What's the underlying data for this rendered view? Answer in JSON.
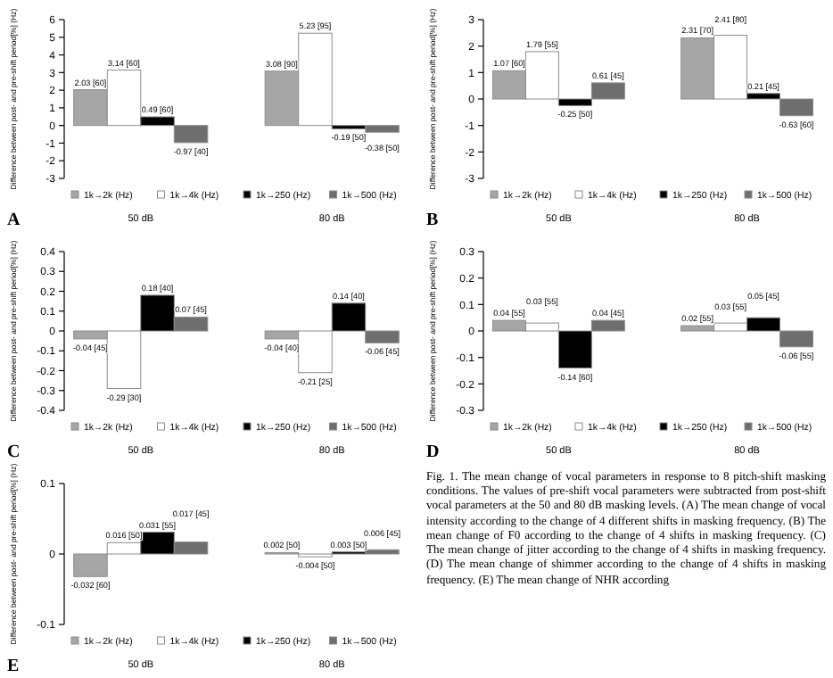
{
  "chart_data": [
    {
      "type": "bar",
      "ylabel": "Difference between post- and pre-shift period[%] (Hz)",
      "categories": [
        "50 dB",
        "80 dB"
      ],
      "ylim": [
        -3,
        6
      ],
      "yticks": [
        -3,
        -2,
        -1,
        0,
        1,
        2,
        3,
        4,
        5,
        6
      ],
      "legend": "bottom",
      "annotations": [
        "A"
      ],
      "series": [
        {
          "name": "1k→2k (Hz)",
          "color": "#a6a6a6",
          "values": [
            2.03,
            3.08
          ],
          "value_labels": [
            "2.03 [60]",
            "3.08 [90]"
          ]
        },
        {
          "name": "1k→4k (Hz)",
          "color": "#ffffff",
          "values": [
            3.14,
            5.23
          ],
          "value_labels": [
            "3.14 [60]",
            "5.23 [95]"
          ]
        },
        {
          "name": "1k→250 (Hz)",
          "color": "#000000",
          "values": [
            0.49,
            -0.19
          ],
          "value_labels": [
            "0.49 [60]",
            "-0.19 [50]"
          ]
        },
        {
          "name": "1k→500 (Hz)",
          "color": "#6e6e6e",
          "values": [
            -0.97,
            -0.38
          ],
          "value_labels": [
            "-0.97 [40]",
            "-0.38 [50]"
          ]
        }
      ]
    },
    {
      "type": "bar",
      "ylabel": "Difference between post- and pre-shift period[%] (Hz)",
      "categories": [
        "50 dB",
        "80 dB"
      ],
      "ylim": [
        -3,
        3
      ],
      "yticks": [
        -3,
        -2,
        -1,
        0,
        1,
        2,
        3
      ],
      "legend": "bottom",
      "annotations": [
        "B"
      ],
      "series": [
        {
          "name": "1k→2k (Hz)",
          "color": "#a6a6a6",
          "values": [
            1.07,
            2.31
          ],
          "value_labels": [
            "1.07 [60]",
            "2.31 [70]"
          ]
        },
        {
          "name": "1k→4k (Hz)",
          "color": "#ffffff",
          "values": [
            1.79,
            2.41
          ],
          "value_labels": [
            "1.79 [55]",
            "2.41 [80]"
          ]
        },
        {
          "name": "1k→250 (Hz)",
          "color": "#000000",
          "values": [
            -0.25,
            0.21
          ],
          "value_labels": [
            "-0.25 [50]",
            "0.21 [45]"
          ]
        },
        {
          "name": "1k→500 (Hz)",
          "color": "#6e6e6e",
          "values": [
            0.61,
            -0.63
          ],
          "value_labels": [
            "0.61 [45]",
            "-0.63 [60]"
          ]
        }
      ]
    },
    {
      "type": "bar",
      "ylabel": "Difference between post- and pre-shift period[%] (Hz)",
      "categories": [
        "50 dB",
        "80 dB"
      ],
      "ylim": [
        -0.4,
        0.4
      ],
      "yticks": [
        -0.4,
        -0.3,
        -0.2,
        -0.1,
        0,
        0.1,
        0.2,
        0.3,
        0.4
      ],
      "legend": "bottom",
      "annotations": [
        "C"
      ],
      "series": [
        {
          "name": "1k→2k (Hz)",
          "color": "#a6a6a6",
          "values": [
            -0.04,
            -0.04
          ],
          "value_labels": [
            "-0.04 [45]",
            "-0.04 [40]"
          ]
        },
        {
          "name": "1k→4k (Hz)",
          "color": "#ffffff",
          "values": [
            -0.29,
            -0.21
          ],
          "value_labels": [
            "-0.29 [30]",
            "-0.21 [25]"
          ]
        },
        {
          "name": "1k→250 (Hz)",
          "color": "#000000",
          "values": [
            0.18,
            0.14
          ],
          "value_labels": [
            "0.18 [40]",
            "0.14 [40]"
          ]
        },
        {
          "name": "1k→500 (Hz)",
          "color": "#6e6e6e",
          "values": [
            0.07,
            -0.06
          ],
          "value_labels": [
            "0.07 [45]",
            "-0.06 [45]"
          ]
        }
      ]
    },
    {
      "type": "bar",
      "ylabel": "Difference between post- and pre-shift period[%] (Hz)",
      "categories": [
        "50 dB",
        "80 dB"
      ],
      "ylim": [
        -0.3,
        0.3
      ],
      "yticks": [
        -0.3,
        -0.2,
        -0.1,
        0,
        0.1,
        0.2,
        0.3
      ],
      "legend": "bottom",
      "annotations": [
        "D"
      ],
      "series": [
        {
          "name": "1k→2k (Hz)",
          "color": "#a6a6a6",
          "values": [
            0.04,
            0.02
          ],
          "value_labels": [
            "0.04 [55]",
            "0.02 [55]"
          ]
        },
        {
          "name": "1k→4k (Hz)",
          "color": "#ffffff",
          "values": [
            0.03,
            0.03
          ],
          "value_labels": [
            "0.03 [55]",
            "0.03 [55]"
          ]
        },
        {
          "name": "1k→250 (Hz)",
          "color": "#000000",
          "values": [
            -0.14,
            0.05
          ],
          "value_labels": [
            "-0.14 [60]",
            "0.05 [45]"
          ]
        },
        {
          "name": "1k→500 (Hz)",
          "color": "#6e6e6e",
          "values": [
            0.04,
            -0.06
          ],
          "value_labels": [
            "0.04 [45]",
            "-0.06 [55]"
          ]
        }
      ]
    },
    {
      "type": "bar",
      "ylabel": "Difference between post- and pre-shift period[%] (Hz)",
      "categories": [
        "50 dB",
        "80 dB"
      ],
      "ylim": [
        -0.1,
        0.1
      ],
      "yticks": [
        -0.1,
        0,
        0.1
      ],
      "legend": "bottom",
      "annotations": [
        "E"
      ],
      "series": [
        {
          "name": "1k→2k (Hz)",
          "color": "#a6a6a6",
          "values": [
            -0.032,
            0.002
          ],
          "value_labels": [
            "-0.032 [60]",
            "0.002 [50]"
          ]
        },
        {
          "name": "1k→4k (Hz)",
          "color": "#ffffff",
          "values": [
            0.016,
            -0.004
          ],
          "value_labels": [
            "0.016 [50]",
            "-0.004 [50]"
          ]
        },
        {
          "name": "1k→250 (Hz)",
          "color": "#000000",
          "values": [
            0.031,
            0.003
          ],
          "value_labels": [
            "0.031 [55]",
            "0.003 [50]"
          ]
        },
        {
          "name": "1k→500 (Hz)",
          "color": "#6e6e6e",
          "values": [
            0.017,
            0.006
          ],
          "value_labels": [
            "0.017 [45]",
            "0.006 [45]"
          ]
        }
      ]
    },
    {
      "type": "other",
      "annotations": [
        "Fig. 1. The mean change of vocal parameters in response to 8 pitch-shift masking conditions. The values of pre-shift vocal parameters were subtracted from post-shift vocal parameters at the 50 and 80 dB masking levels. (A) The mean change of vocal intensity according to the change of 4 different shifts in masking frequency. (B) The mean change of F0 according to the change of 4 shifts in masking frequency. (C) The mean change of jitter according to the change of 4 shifts in masking frequency. (D) The mean change of shimmer according to the change of 4 shifts in masking frequency. (E) The mean change of NHR according"
      ]
    }
  ]
}
